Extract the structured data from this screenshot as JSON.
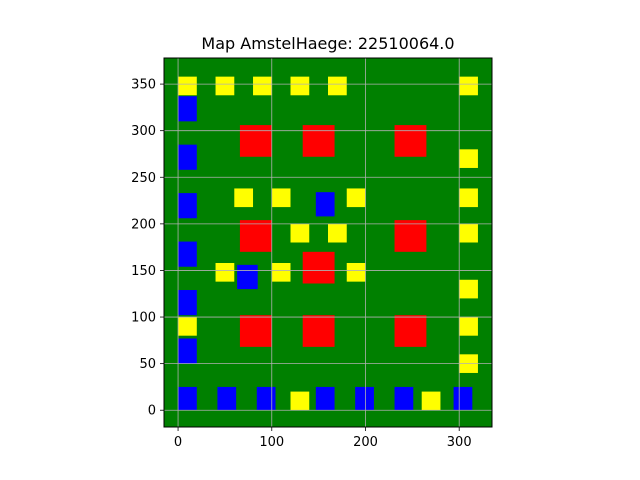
{
  "chart_data": {
    "type": "heatmap",
    "title": "Map AmstelHaege: 22510064.0",
    "xlabel": "",
    "ylabel": "",
    "xlim": [
      -15,
      335
    ],
    "ylim": [
      -18,
      378
    ],
    "xticks": [
      0,
      100,
      200,
      300
    ],
    "yticks": [
      0,
      50,
      100,
      150,
      200,
      250,
      300,
      350
    ],
    "grid": true,
    "background_color": "#008000",
    "grid_color": "#b0b0b0",
    "colors": {
      "water": "#0000ff",
      "house_large": "#ff0000",
      "house_small": "#ffff00"
    },
    "water": [
      {
        "x": 0,
        "y": 0,
        "w": 20,
        "h": 25
      },
      {
        "x": 42,
        "y": 0,
        "w": 20,
        "h": 25
      },
      {
        "x": 84,
        "y": 0,
        "w": 20,
        "h": 25
      },
      {
        "x": 147,
        "y": 0,
        "w": 20,
        "h": 25
      },
      {
        "x": 189,
        "y": 0,
        "w": 20,
        "h": 25
      },
      {
        "x": 231,
        "y": 0,
        "w": 20,
        "h": 25
      },
      {
        "x": 294,
        "y": 0,
        "w": 20,
        "h": 25
      },
      {
        "x": 0,
        "y": 50,
        "w": 20,
        "h": 27
      },
      {
        "x": 0,
        "y": 102,
        "w": 20,
        "h": 27
      },
      {
        "x": 0,
        "y": 154,
        "w": 20,
        "h": 27
      },
      {
        "x": 0,
        "y": 206,
        "w": 20,
        "h": 27
      },
      {
        "x": 0,
        "y": 258,
        "w": 20,
        "h": 27
      },
      {
        "x": 0,
        "y": 310,
        "w": 20,
        "h": 27
      },
      {
        "x": 63,
        "y": 130,
        "w": 22,
        "h": 26
      },
      {
        "x": 147,
        "y": 208,
        "w": 20,
        "h": 26
      }
    ],
    "house_large": [
      {
        "x": 66,
        "y": 68,
        "w": 34,
        "h": 34
      },
      {
        "x": 133,
        "y": 68,
        "w": 34,
        "h": 34
      },
      {
        "x": 231,
        "y": 68,
        "w": 34,
        "h": 34
      },
      {
        "x": 133,
        "y": 136,
        "w": 34,
        "h": 34
      },
      {
        "x": 66,
        "y": 170,
        "w": 34,
        "h": 34
      },
      {
        "x": 231,
        "y": 170,
        "w": 34,
        "h": 34
      },
      {
        "x": 66,
        "y": 272,
        "w": 34,
        "h": 34
      },
      {
        "x": 133,
        "y": 272,
        "w": 34,
        "h": 34
      },
      {
        "x": 231,
        "y": 272,
        "w": 34,
        "h": 34
      }
    ],
    "house_small": [
      {
        "x": 0,
        "y": 338,
        "w": 20,
        "h": 20
      },
      {
        "x": 40,
        "y": 338,
        "w": 20,
        "h": 20
      },
      {
        "x": 80,
        "y": 338,
        "w": 20,
        "h": 20
      },
      {
        "x": 120,
        "y": 338,
        "w": 20,
        "h": 20
      },
      {
        "x": 160,
        "y": 338,
        "w": 20,
        "h": 20
      },
      {
        "x": 300,
        "y": 338,
        "w": 20,
        "h": 20
      },
      {
        "x": 300,
        "y": 260,
        "w": 20,
        "h": 20
      },
      {
        "x": 60,
        "y": 218,
        "w": 20,
        "h": 20
      },
      {
        "x": 100,
        "y": 218,
        "w": 20,
        "h": 20
      },
      {
        "x": 180,
        "y": 218,
        "w": 20,
        "h": 20
      },
      {
        "x": 300,
        "y": 218,
        "w": 20,
        "h": 20
      },
      {
        "x": 120,
        "y": 180,
        "w": 20,
        "h": 20
      },
      {
        "x": 160,
        "y": 180,
        "w": 20,
        "h": 20
      },
      {
        "x": 300,
        "y": 180,
        "w": 20,
        "h": 20
      },
      {
        "x": 40,
        "y": 138,
        "w": 20,
        "h": 20
      },
      {
        "x": 100,
        "y": 138,
        "w": 20,
        "h": 20
      },
      {
        "x": 180,
        "y": 138,
        "w": 20,
        "h": 20
      },
      {
        "x": 300,
        "y": 120,
        "w": 20,
        "h": 20
      },
      {
        "x": 0,
        "y": 80,
        "w": 20,
        "h": 20
      },
      {
        "x": 300,
        "y": 80,
        "w": 20,
        "h": 20
      },
      {
        "x": 300,
        "y": 40,
        "w": 20,
        "h": 20
      },
      {
        "x": 120,
        "y": 0,
        "w": 20,
        "h": 20
      },
      {
        "x": 260,
        "y": 0,
        "w": 20,
        "h": 20
      }
    ]
  }
}
